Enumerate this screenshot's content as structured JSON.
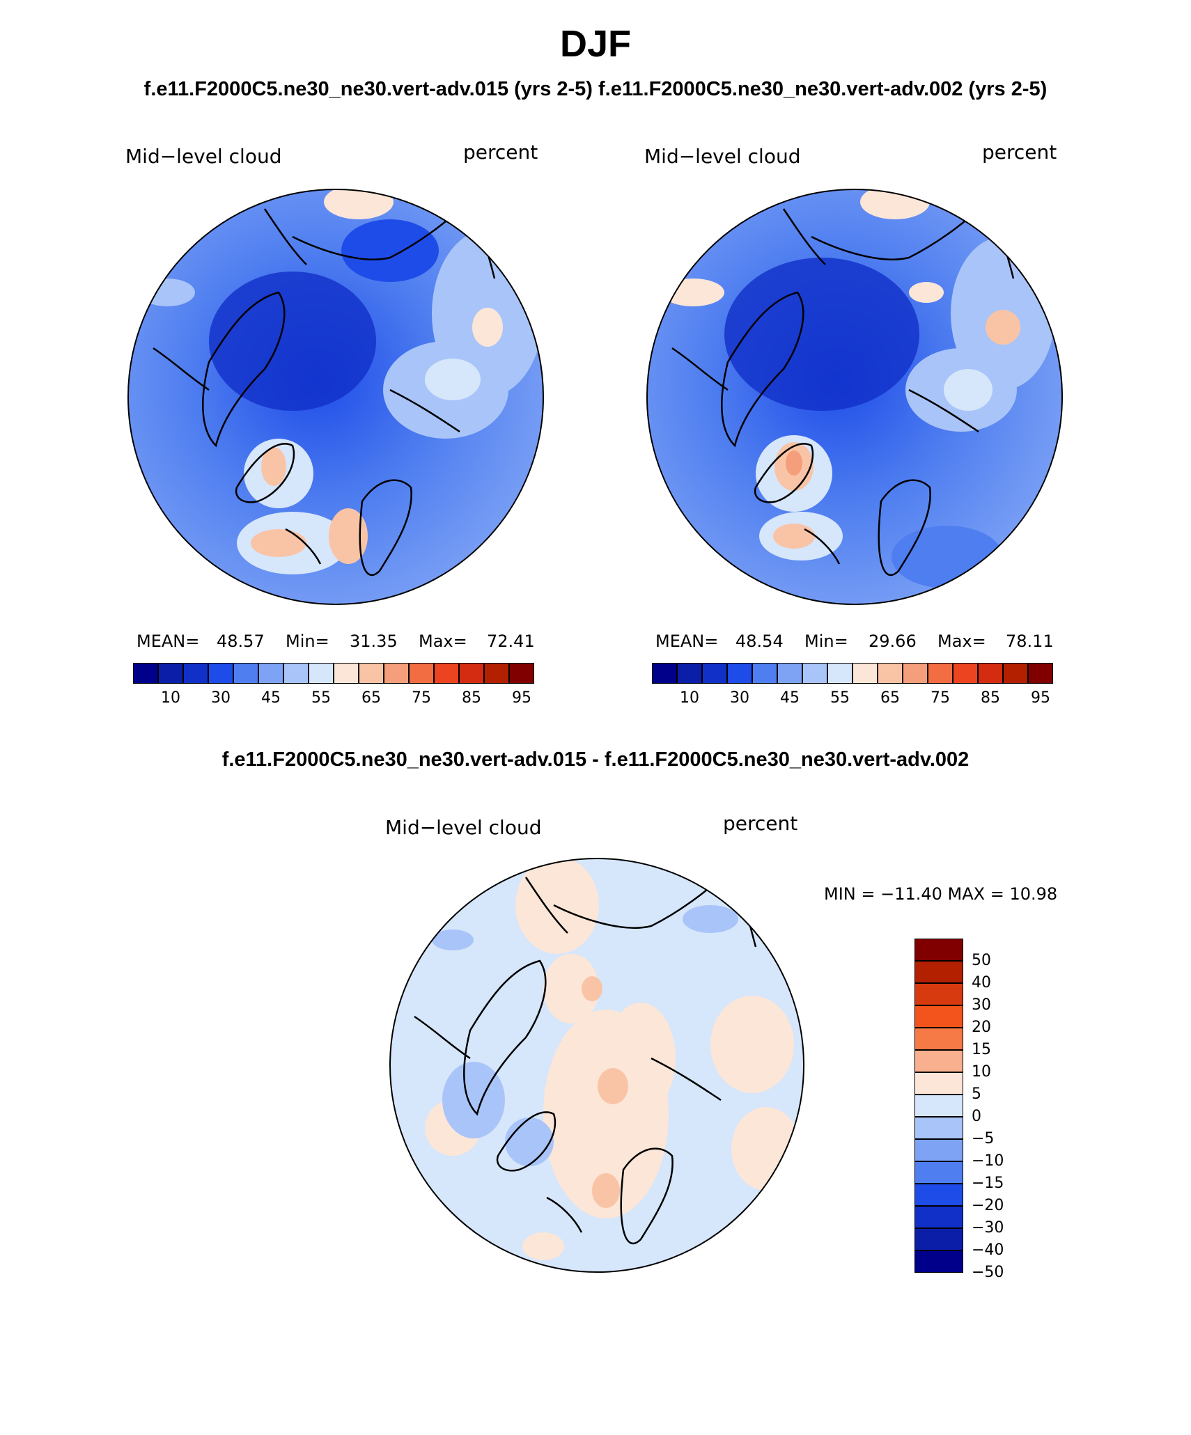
{
  "title": "DJF",
  "subtitle_top": "f.e11.F2000C5.ne30_ne30.vert-adv.015 (yrs 2-5)  f.e11.F2000C5.ne30_ne30.vert-adv.002 (yrs 2-5)",
  "subtitle_diff": "f.e11.F2000C5.ne30_ne30.vert-adv.015 - f.e11.F2000C5.ne30_ne30.vert-adv.002",
  "panels": {
    "left": {
      "variable": "Mid−level cloud",
      "units": "percent",
      "mean_label": "MEAN=",
      "mean": "48.57",
      "min_label": "Min=",
      "min": "31.35",
      "max_label": "Max=",
      "max": "72.41"
    },
    "right": {
      "variable": "Mid−level cloud",
      "units": "percent",
      "mean_label": "MEAN=",
      "mean": "48.54",
      "min_label": "Min=",
      "min": "29.66",
      "max_label": "Max=",
      "max": "78.11"
    },
    "diff": {
      "variable": "Mid−level cloud",
      "units": "percent",
      "minmax_text": "MIN = −11.40  MAX =   10.98"
    }
  },
  "colorbar_abs": {
    "colors": [
      "#00008b",
      "#0a1ea8",
      "#1030c8",
      "#1e4ce8",
      "#4f7ef0",
      "#7ea3f5",
      "#a9c4f8",
      "#d6e6fb",
      "#fce6d8",
      "#f9c4a6",
      "#f59e7c",
      "#f26d42",
      "#ec4420",
      "#d42c10",
      "#b22000",
      "#800000"
    ],
    "labels": [
      "10",
      "30",
      "45",
      "55",
      "65",
      "75",
      "85",
      "95"
    ]
  },
  "colorbar_diff": {
    "colors": [
      "#800000",
      "#b22000",
      "#d83a10",
      "#f2541c",
      "#f67a46",
      "#f9b08e",
      "#fce6d8",
      "#d6e6fb",
      "#a9c4f8",
      "#7ea3f5",
      "#4f7ef0",
      "#1e4ce8",
      "#1030c8",
      "#0a1ea8",
      "#00008b"
    ],
    "labels": [
      "50",
      "40",
      "30",
      "20",
      "15",
      "10",
      "5",
      "0",
      "−5",
      "−10",
      "−15",
      "−20",
      "−30",
      "−40",
      "−50"
    ]
  }
}
